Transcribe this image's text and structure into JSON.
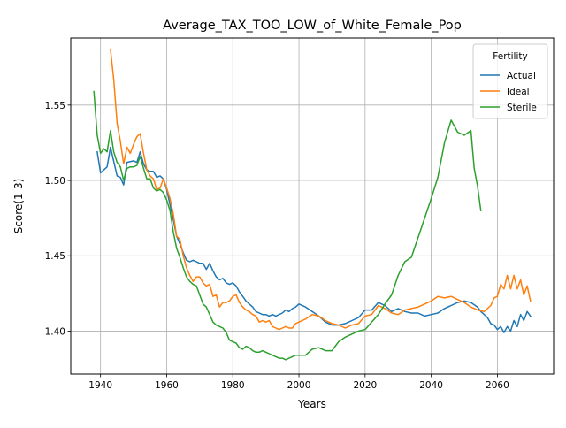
{
  "chart_data": {
    "type": "line",
    "title": "Average_TAX_TOO_LOW_of_White_Female_Pop",
    "xlabel": "Years",
    "ylabel": "Score(1-3)",
    "xlim": [
      1931,
      2077
    ],
    "ylim": [
      1.3715,
      1.5945
    ],
    "xticks": [
      1940,
      1960,
      1980,
      2000,
      2020,
      2040,
      2060
    ],
    "yticks": [
      1.4,
      1.45,
      1.5,
      1.55
    ],
    "xtick_labels": [
      "1940",
      "1960",
      "1980",
      "2000",
      "2020",
      "2040",
      "2060"
    ],
    "ytick_labels": [
      "1.40",
      "1.45",
      "1.50",
      "1.55"
    ],
    "grid": true,
    "legend": {
      "title": "Fertility",
      "placement": "top-right"
    },
    "series": [
      {
        "name": "Actual",
        "color": "#1f77b4",
        "x": [
          1939,
          1940,
          1942,
          1943,
          1945,
          1946,
          1947,
          1948,
          1950,
          1951,
          1952,
          1953,
          1954,
          1955,
          1956,
          1957,
          1958,
          1959,
          1960,
          1961,
          1962,
          1963,
          1964,
          1965,
          1966,
          1967,
          1968,
          1969,
          1970,
          1971,
          1972,
          1973,
          1974,
          1975,
          1976,
          1977,
          1978,
          1979,
          1980,
          1981,
          1982,
          1983,
          1984,
          1985,
          1986,
          1987,
          1988,
          1989,
          1990,
          1991,
          1992,
          1993,
          1994,
          1995,
          1996,
          1997,
          1998,
          1999,
          2000,
          2002,
          2004,
          2006,
          2008,
          2010,
          2012,
          2014,
          2016,
          2018,
          2020,
          2022,
          2024,
          2026,
          2028,
          2030,
          2032,
          2034,
          2036,
          2038,
          2040,
          2042,
          2044,
          2046,
          2048,
          2050,
          2052,
          2054,
          2055,
          2056,
          2057,
          2058,
          2059,
          2060,
          2061,
          2062,
          2063,
          2064,
          2065,
          2066,
          2067,
          2068,
          2069,
          2070
        ],
        "y": [
          1.519,
          1.505,
          1.509,
          1.522,
          1.503,
          1.502,
          1.497,
          1.512,
          1.513,
          1.512,
          1.519,
          1.511,
          1.507,
          1.506,
          1.506,
          1.502,
          1.503,
          1.501,
          1.494,
          1.484,
          1.474,
          1.463,
          1.458,
          1.452,
          1.447,
          1.446,
          1.447,
          1.446,
          1.445,
          1.445,
          1.441,
          1.445,
          1.44,
          1.436,
          1.434,
          1.435,
          1.432,
          1.431,
          1.432,
          1.43,
          1.426,
          1.423,
          1.42,
          1.418,
          1.416,
          1.413,
          1.412,
          1.411,
          1.411,
          1.41,
          1.411,
          1.41,
          1.411,
          1.412,
          1.414,
          1.413,
          1.415,
          1.416,
          1.418,
          1.416,
          1.413,
          1.41,
          1.406,
          1.404,
          1.404,
          1.405,
          1.407,
          1.409,
          1.414,
          1.414,
          1.419,
          1.417,
          1.413,
          1.415,
          1.413,
          1.412,
          1.412,
          1.41,
          1.411,
          1.412,
          1.415,
          1.417,
          1.419,
          1.42,
          1.419,
          1.416,
          1.413,
          1.411,
          1.409,
          1.405,
          1.404,
          1.401,
          1.403,
          1.399,
          1.403,
          1.4,
          1.407,
          1.403,
          1.411,
          1.407,
          1.413,
          1.41
        ]
      },
      {
        "name": "Ideal",
        "color": "#ff7f0e",
        "x": [
          1943,
          1944,
          1945,
          1946,
          1947,
          1948,
          1949,
          1950,
          1951,
          1952,
          1953,
          1954,
          1955,
          1956,
          1957,
          1958,
          1959,
          1960,
          1961,
          1962,
          1963,
          1964,
          1965,
          1966,
          1967,
          1968,
          1969,
          1970,
          1971,
          1972,
          1973,
          1974,
          1975,
          1976,
          1977,
          1978,
          1979,
          1980,
          1981,
          1982,
          1983,
          1984,
          1985,
          1986,
          1987,
          1988,
          1989,
          1990,
          1991,
          1992,
          1993,
          1994,
          1995,
          1996,
          1997,
          1998,
          1999,
          2000,
          2002,
          2004,
          2006,
          2008,
          2010,
          2012,
          2014,
          2016,
          2018,
          2020,
          2022,
          2024,
          2026,
          2028,
          2030,
          2032,
          2034,
          2036,
          2038,
          2040,
          2042,
          2044,
          2046,
          2048,
          2050,
          2052,
          2054,
          2056,
          2058,
          2059,
          2060,
          2061,
          2062,
          2063,
          2064,
          2065,
          2066,
          2067,
          2068,
          2069,
          2070
        ],
        "y": [
          1.587,
          1.567,
          1.538,
          1.526,
          1.511,
          1.522,
          1.518,
          1.524,
          1.529,
          1.531,
          1.518,
          1.507,
          1.503,
          1.501,
          1.494,
          1.495,
          1.501,
          1.495,
          1.488,
          1.478,
          1.463,
          1.461,
          1.45,
          1.442,
          1.437,
          1.433,
          1.436,
          1.436,
          1.432,
          1.43,
          1.431,
          1.423,
          1.424,
          1.416,
          1.419,
          1.419,
          1.42,
          1.423,
          1.424,
          1.419,
          1.416,
          1.414,
          1.413,
          1.411,
          1.41,
          1.406,
          1.407,
          1.406,
          1.407,
          1.403,
          1.402,
          1.401,
          1.402,
          1.403,
          1.402,
          1.402,
          1.405,
          1.406,
          1.408,
          1.411,
          1.41,
          1.407,
          1.405,
          1.404,
          1.402,
          1.404,
          1.405,
          1.41,
          1.411,
          1.417,
          1.415,
          1.412,
          1.411,
          1.414,
          1.415,
          1.416,
          1.418,
          1.42,
          1.423,
          1.422,
          1.423,
          1.421,
          1.419,
          1.416,
          1.414,
          1.413,
          1.417,
          1.422,
          1.423,
          1.431,
          1.428,
          1.437,
          1.428,
          1.437,
          1.428,
          1.434,
          1.424,
          1.43,
          1.42
        ]
      },
      {
        "name": "Sterile",
        "color": "#2ca02c",
        "x": [
          1938,
          1939,
          1940,
          1941,
          1942,
          1943,
          1944,
          1945,
          1946,
          1947,
          1948,
          1949,
          1950,
          1951,
          1952,
          1953,
          1954,
          1955,
          1956,
          1957,
          1958,
          1959,
          1960,
          1961,
          1962,
          1963,
          1964,
          1965,
          1966,
          1967,
          1968,
          1969,
          1970,
          1971,
          1972,
          1973,
          1974,
          1975,
          1976,
          1977,
          1978,
          1979,
          1980,
          1981,
          1982,
          1983,
          1984,
          1985,
          1986,
          1987,
          1988,
          1989,
          1990,
          1991,
          1992,
          1993,
          1994,
          1995,
          1996,
          1997,
          1998,
          1999,
          2000,
          2002,
          2004,
          2006,
          2008,
          2010,
          2012,
          2014,
          2016,
          2018,
          2020,
          2022,
          2024,
          2026,
          2028,
          2030,
          2032,
          2034,
          2036,
          2038,
          2040,
          2042,
          2044,
          2046,
          2048,
          2050,
          2052,
          2053,
          2054,
          2055
        ],
        "y": [
          1.559,
          1.53,
          1.518,
          1.521,
          1.519,
          1.533,
          1.519,
          1.512,
          1.509,
          1.5,
          1.508,
          1.509,
          1.509,
          1.51,
          1.516,
          1.508,
          1.501,
          1.501,
          1.495,
          1.493,
          1.494,
          1.492,
          1.487,
          1.48,
          1.466,
          1.455,
          1.449,
          1.442,
          1.436,
          1.433,
          1.431,
          1.43,
          1.424,
          1.418,
          1.416,
          1.411,
          1.406,
          1.404,
          1.403,
          1.402,
          1.399,
          1.394,
          1.393,
          1.392,
          1.389,
          1.388,
          1.39,
          1.389,
          1.387,
          1.386,
          1.386,
          1.387,
          1.386,
          1.385,
          1.384,
          1.383,
          1.382,
          1.382,
          1.381,
          1.382,
          1.383,
          1.384,
          1.384,
          1.384,
          1.388,
          1.389,
          1.387,
          1.387,
          1.393,
          1.396,
          1.398,
          1.4,
          1.401,
          1.406,
          1.411,
          1.418,
          1.424,
          1.437,
          1.446,
          1.449,
          1.462,
          1.475,
          1.488,
          1.502,
          1.525,
          1.54,
          1.532,
          1.53,
          1.533,
          1.508,
          1.496,
          1.48
        ]
      }
    ]
  }
}
